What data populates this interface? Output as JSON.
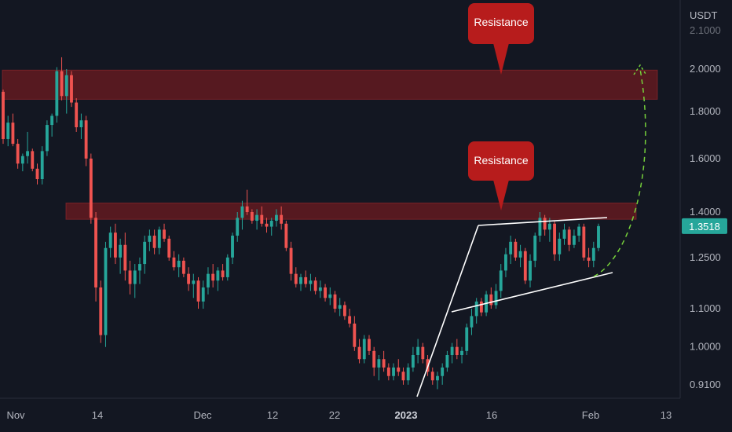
{
  "chart_data": {
    "type": "candlestick",
    "currency": "USDT",
    "y_scale": "log",
    "ylim": [
      0.88,
      2.18
    ],
    "y_ticks": [
      "2.0000",
      "1.8000",
      "1.6000",
      "1.4000",
      "1.2500",
      "1.1000",
      "1.0000",
      "0.9100"
    ],
    "last_price": "1.3518",
    "x_ticks": [
      "Nov",
      "14",
      "Dec",
      "12",
      "22",
      "2023",
      "16",
      "Feb",
      "13"
    ],
    "resistance_zones": [
      {
        "label": "Resistance",
        "from": 1.855,
        "to": 1.995
      },
      {
        "label": "Resistance",
        "from": 1.375,
        "to": 1.432
      }
    ],
    "colors": {
      "background": "#131722",
      "up": "#26a69a",
      "down": "#ef5350",
      "zone": "#7f1b1f",
      "callout": "#b71c1c",
      "projection": "#76d13b",
      "trendline": "#ffffff"
    },
    "candles": [
      [
        1.89,
        1.9,
        1.66,
        1.68
      ],
      [
        1.68,
        1.78,
        1.65,
        1.75
      ],
      [
        1.75,
        1.79,
        1.65,
        1.66
      ],
      [
        1.66,
        1.68,
        1.56,
        1.58
      ],
      [
        1.58,
        1.62,
        1.55,
        1.61
      ],
      [
        1.61,
        1.71,
        1.58,
        1.63
      ],
      [
        1.63,
        1.64,
        1.55,
        1.56
      ],
      [
        1.56,
        1.58,
        1.5,
        1.52
      ],
      [
        1.52,
        1.65,
        1.5,
        1.63
      ],
      [
        1.63,
        1.76,
        1.61,
        1.74
      ],
      [
        1.74,
        1.79,
        1.69,
        1.78
      ],
      [
        1.78,
        2.01,
        1.75,
        1.99
      ],
      [
        1.99,
        2.06,
        1.85,
        1.87
      ],
      [
        1.87,
        2.0,
        1.79,
        1.97
      ],
      [
        1.97,
        1.99,
        1.82,
        1.84
      ],
      [
        1.84,
        1.86,
        1.71,
        1.73
      ],
      [
        1.73,
        1.79,
        1.68,
        1.76
      ],
      [
        1.76,
        1.78,
        1.57,
        1.6
      ],
      [
        1.6,
        1.62,
        1.36,
        1.38
      ],
      [
        1.38,
        1.4,
        1.12,
        1.16
      ],
      [
        1.16,
        1.18,
        1.01,
        1.03
      ],
      [
        1.03,
        1.3,
        1.0,
        1.28
      ],
      [
        1.28,
        1.35,
        1.25,
        1.33
      ],
      [
        1.33,
        1.36,
        1.23,
        1.25
      ],
      [
        1.25,
        1.31,
        1.2,
        1.29
      ],
      [
        1.29,
        1.33,
        1.18,
        1.21
      ],
      [
        1.21,
        1.24,
        1.14,
        1.17
      ],
      [
        1.17,
        1.23,
        1.13,
        1.21
      ],
      [
        1.21,
        1.25,
        1.17,
        1.23
      ],
      [
        1.23,
        1.32,
        1.2,
        1.3
      ],
      [
        1.3,
        1.34,
        1.27,
        1.32
      ],
      [
        1.32,
        1.34,
        1.26,
        1.28
      ],
      [
        1.28,
        1.35,
        1.26,
        1.34
      ],
      [
        1.34,
        1.36,
        1.3,
        1.31
      ],
      [
        1.31,
        1.32,
        1.24,
        1.25
      ],
      [
        1.25,
        1.27,
        1.21,
        1.22
      ],
      [
        1.22,
        1.26,
        1.19,
        1.24
      ],
      [
        1.24,
        1.25,
        1.19,
        1.2
      ],
      [
        1.2,
        1.22,
        1.15,
        1.17
      ],
      [
        1.17,
        1.2,
        1.13,
        1.18
      ],
      [
        1.18,
        1.19,
        1.1,
        1.12
      ],
      [
        1.12,
        1.18,
        1.1,
        1.16
      ],
      [
        1.16,
        1.22,
        1.14,
        1.2
      ],
      [
        1.2,
        1.23,
        1.16,
        1.18
      ],
      [
        1.18,
        1.22,
        1.15,
        1.21
      ],
      [
        1.21,
        1.23,
        1.18,
        1.19
      ],
      [
        1.19,
        1.26,
        1.18,
        1.25
      ],
      [
        1.25,
        1.33,
        1.23,
        1.32
      ],
      [
        1.32,
        1.4,
        1.3,
        1.38
      ],
      [
        1.38,
        1.44,
        1.34,
        1.42
      ],
      [
        1.42,
        1.48,
        1.39,
        1.4
      ],
      [
        1.4,
        1.41,
        1.36,
        1.37
      ],
      [
        1.37,
        1.41,
        1.34,
        1.39
      ],
      [
        1.39,
        1.42,
        1.35,
        1.36
      ],
      [
        1.36,
        1.38,
        1.33,
        1.35
      ],
      [
        1.35,
        1.38,
        1.32,
        1.37
      ],
      [
        1.37,
        1.41,
        1.35,
        1.39
      ],
      [
        1.39,
        1.42,
        1.34,
        1.36
      ],
      [
        1.36,
        1.37,
        1.27,
        1.28
      ],
      [
        1.28,
        1.3,
        1.18,
        1.2
      ],
      [
        1.2,
        1.22,
        1.16,
        1.17
      ],
      [
        1.17,
        1.2,
        1.15,
        1.19
      ],
      [
        1.19,
        1.21,
        1.16,
        1.17
      ],
      [
        1.17,
        1.2,
        1.15,
        1.18
      ],
      [
        1.18,
        1.19,
        1.14,
        1.15
      ],
      [
        1.15,
        1.18,
        1.13,
        1.16
      ],
      [
        1.16,
        1.17,
        1.12,
        1.13
      ],
      [
        1.13,
        1.16,
        1.11,
        1.14
      ],
      [
        1.14,
        1.15,
        1.09,
        1.1
      ],
      [
        1.1,
        1.13,
        1.08,
        1.11
      ],
      [
        1.11,
        1.12,
        1.07,
        1.08
      ],
      [
        1.08,
        1.1,
        1.05,
        1.06
      ],
      [
        1.06,
        1.08,
        0.99,
        1.0
      ],
      [
        1.0,
        1.02,
        0.96,
        0.97
      ],
      [
        0.97,
        1.03,
        0.96,
        1.02
      ],
      [
        1.02,
        1.03,
        0.98,
        0.99
      ],
      [
        0.99,
        1.0,
        0.93,
        0.95
      ],
      [
        0.95,
        0.98,
        0.92,
        0.97
      ],
      [
        0.97,
        0.99,
        0.94,
        0.95
      ],
      [
        0.95,
        0.96,
        0.92,
        0.93
      ],
      [
        0.93,
        0.96,
        0.92,
        0.95
      ],
      [
        0.95,
        0.97,
        0.93,
        0.94
      ],
      [
        0.94,
        0.95,
        0.91,
        0.92
      ],
      [
        0.92,
        0.96,
        0.91,
        0.95
      ],
      [
        0.95,
        1.0,
        0.94,
        0.98
      ],
      [
        0.98,
        1.02,
        0.96,
        1.0
      ],
      [
        1.0,
        1.01,
        0.96,
        0.97
      ],
      [
        0.97,
        0.98,
        0.93,
        0.94
      ],
      [
        0.94,
        0.95,
        0.91,
        0.92
      ],
      [
        0.92,
        0.94,
        0.9,
        0.93
      ],
      [
        0.93,
        0.96,
        0.91,
        0.95
      ],
      [
        0.95,
        0.99,
        0.94,
        0.98
      ],
      [
        0.98,
        1.01,
        0.96,
        1.0
      ],
      [
        1.0,
        1.02,
        0.97,
        0.98
      ],
      [
        0.98,
        1.0,
        0.96,
        0.99
      ],
      [
        0.99,
        1.06,
        0.98,
        1.05
      ],
      [
        1.05,
        1.1,
        1.03,
        1.08
      ],
      [
        1.08,
        1.13,
        1.06,
        1.12
      ],
      [
        1.12,
        1.13,
        1.08,
        1.09
      ],
      [
        1.09,
        1.15,
        1.08,
        1.14
      ],
      [
        1.14,
        1.16,
        1.1,
        1.11
      ],
      [
        1.11,
        1.17,
        1.1,
        1.15
      ],
      [
        1.15,
        1.23,
        1.13,
        1.21
      ],
      [
        1.21,
        1.28,
        1.19,
        1.26
      ],
      [
        1.26,
        1.32,
        1.23,
        1.3
      ],
      [
        1.3,
        1.31,
        1.24,
        1.25
      ],
      [
        1.25,
        1.29,
        1.22,
        1.27
      ],
      [
        1.27,
        1.28,
        1.17,
        1.18
      ],
      [
        1.18,
        1.26,
        1.16,
        1.24
      ],
      [
        1.24,
        1.33,
        1.22,
        1.32
      ],
      [
        1.32,
        1.4,
        1.3,
        1.38
      ],
      [
        1.38,
        1.39,
        1.32,
        1.34
      ],
      [
        1.34,
        1.38,
        1.3,
        1.36
      ],
      [
        1.36,
        1.37,
        1.24,
        1.26
      ],
      [
        1.26,
        1.33,
        1.24,
        1.31
      ],
      [
        1.31,
        1.36,
        1.29,
        1.34
      ],
      [
        1.34,
        1.35,
        1.27,
        1.29
      ],
      [
        1.29,
        1.34,
        1.28,
        1.32
      ],
      [
        1.32,
        1.36,
        1.3,
        1.35
      ],
      [
        1.35,
        1.36,
        1.24,
        1.25
      ],
      [
        1.25,
        1.28,
        1.22,
        1.24
      ],
      [
        1.24,
        1.3,
        1.22,
        1.28
      ],
      [
        1.28,
        1.36,
        1.27,
        1.3518
      ]
    ]
  }
}
